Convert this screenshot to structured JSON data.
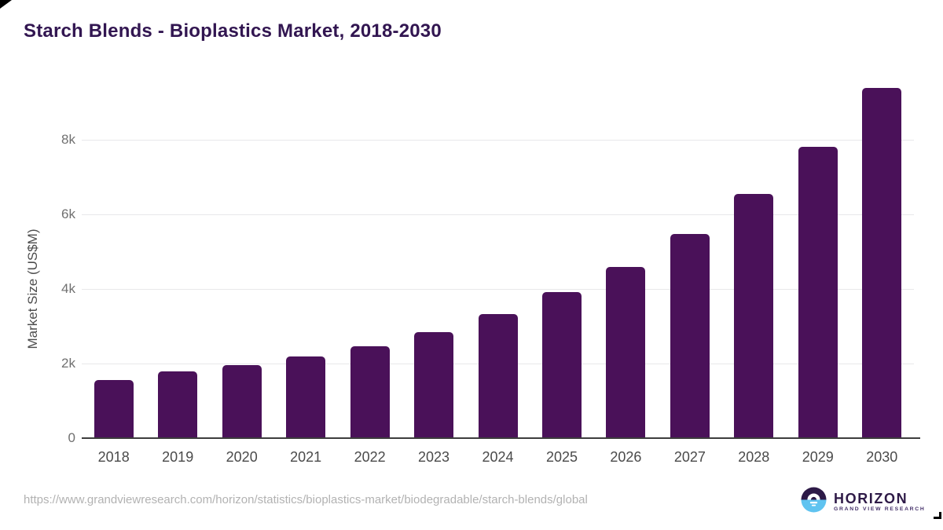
{
  "page": {
    "title": "Starch Blends - Bioplastics Market, 2018-2030"
  },
  "chart_data": {
    "type": "bar",
    "title": "Starch Blends - Bioplastics Market, 2018-2030",
    "categories": [
      "2018",
      "2019",
      "2020",
      "2021",
      "2022",
      "2023",
      "2024",
      "2025",
      "2026",
      "2027",
      "2028",
      "2029",
      "2030"
    ],
    "values": [
      1550,
      1800,
      1950,
      2180,
      2470,
      2850,
      3320,
      3910,
      4600,
      5480,
      6550,
      7820,
      9400
    ],
    "xlabel": "",
    "ylabel": "Market Size (US$M)",
    "yticks": [
      {
        "label": "0",
        "value": 0
      },
      {
        "label": "2k",
        "value": 2000
      },
      {
        "label": "4k",
        "value": 4000
      },
      {
        "label": "6k",
        "value": 6000
      },
      {
        "label": "8k",
        "value": 8000
      }
    ],
    "ylim": [
      0,
      9600
    ],
    "grid": true,
    "legend": false,
    "bar_color": "#4a1159",
    "gridline_color": "#e8e8ea",
    "axis_color": "#3d3d3d"
  },
  "footer": {
    "source_url": "https://www.grandviewresearch.com/horizon/statistics/bioplastics-market/biodegradable/starch-blends/global",
    "logo": {
      "name": "HORIZON",
      "tagline": "GRAND VIEW RESEARCH",
      "circle_top_color": "#2d1a47",
      "circle_bottom_color": "#5fc3f0"
    }
  }
}
